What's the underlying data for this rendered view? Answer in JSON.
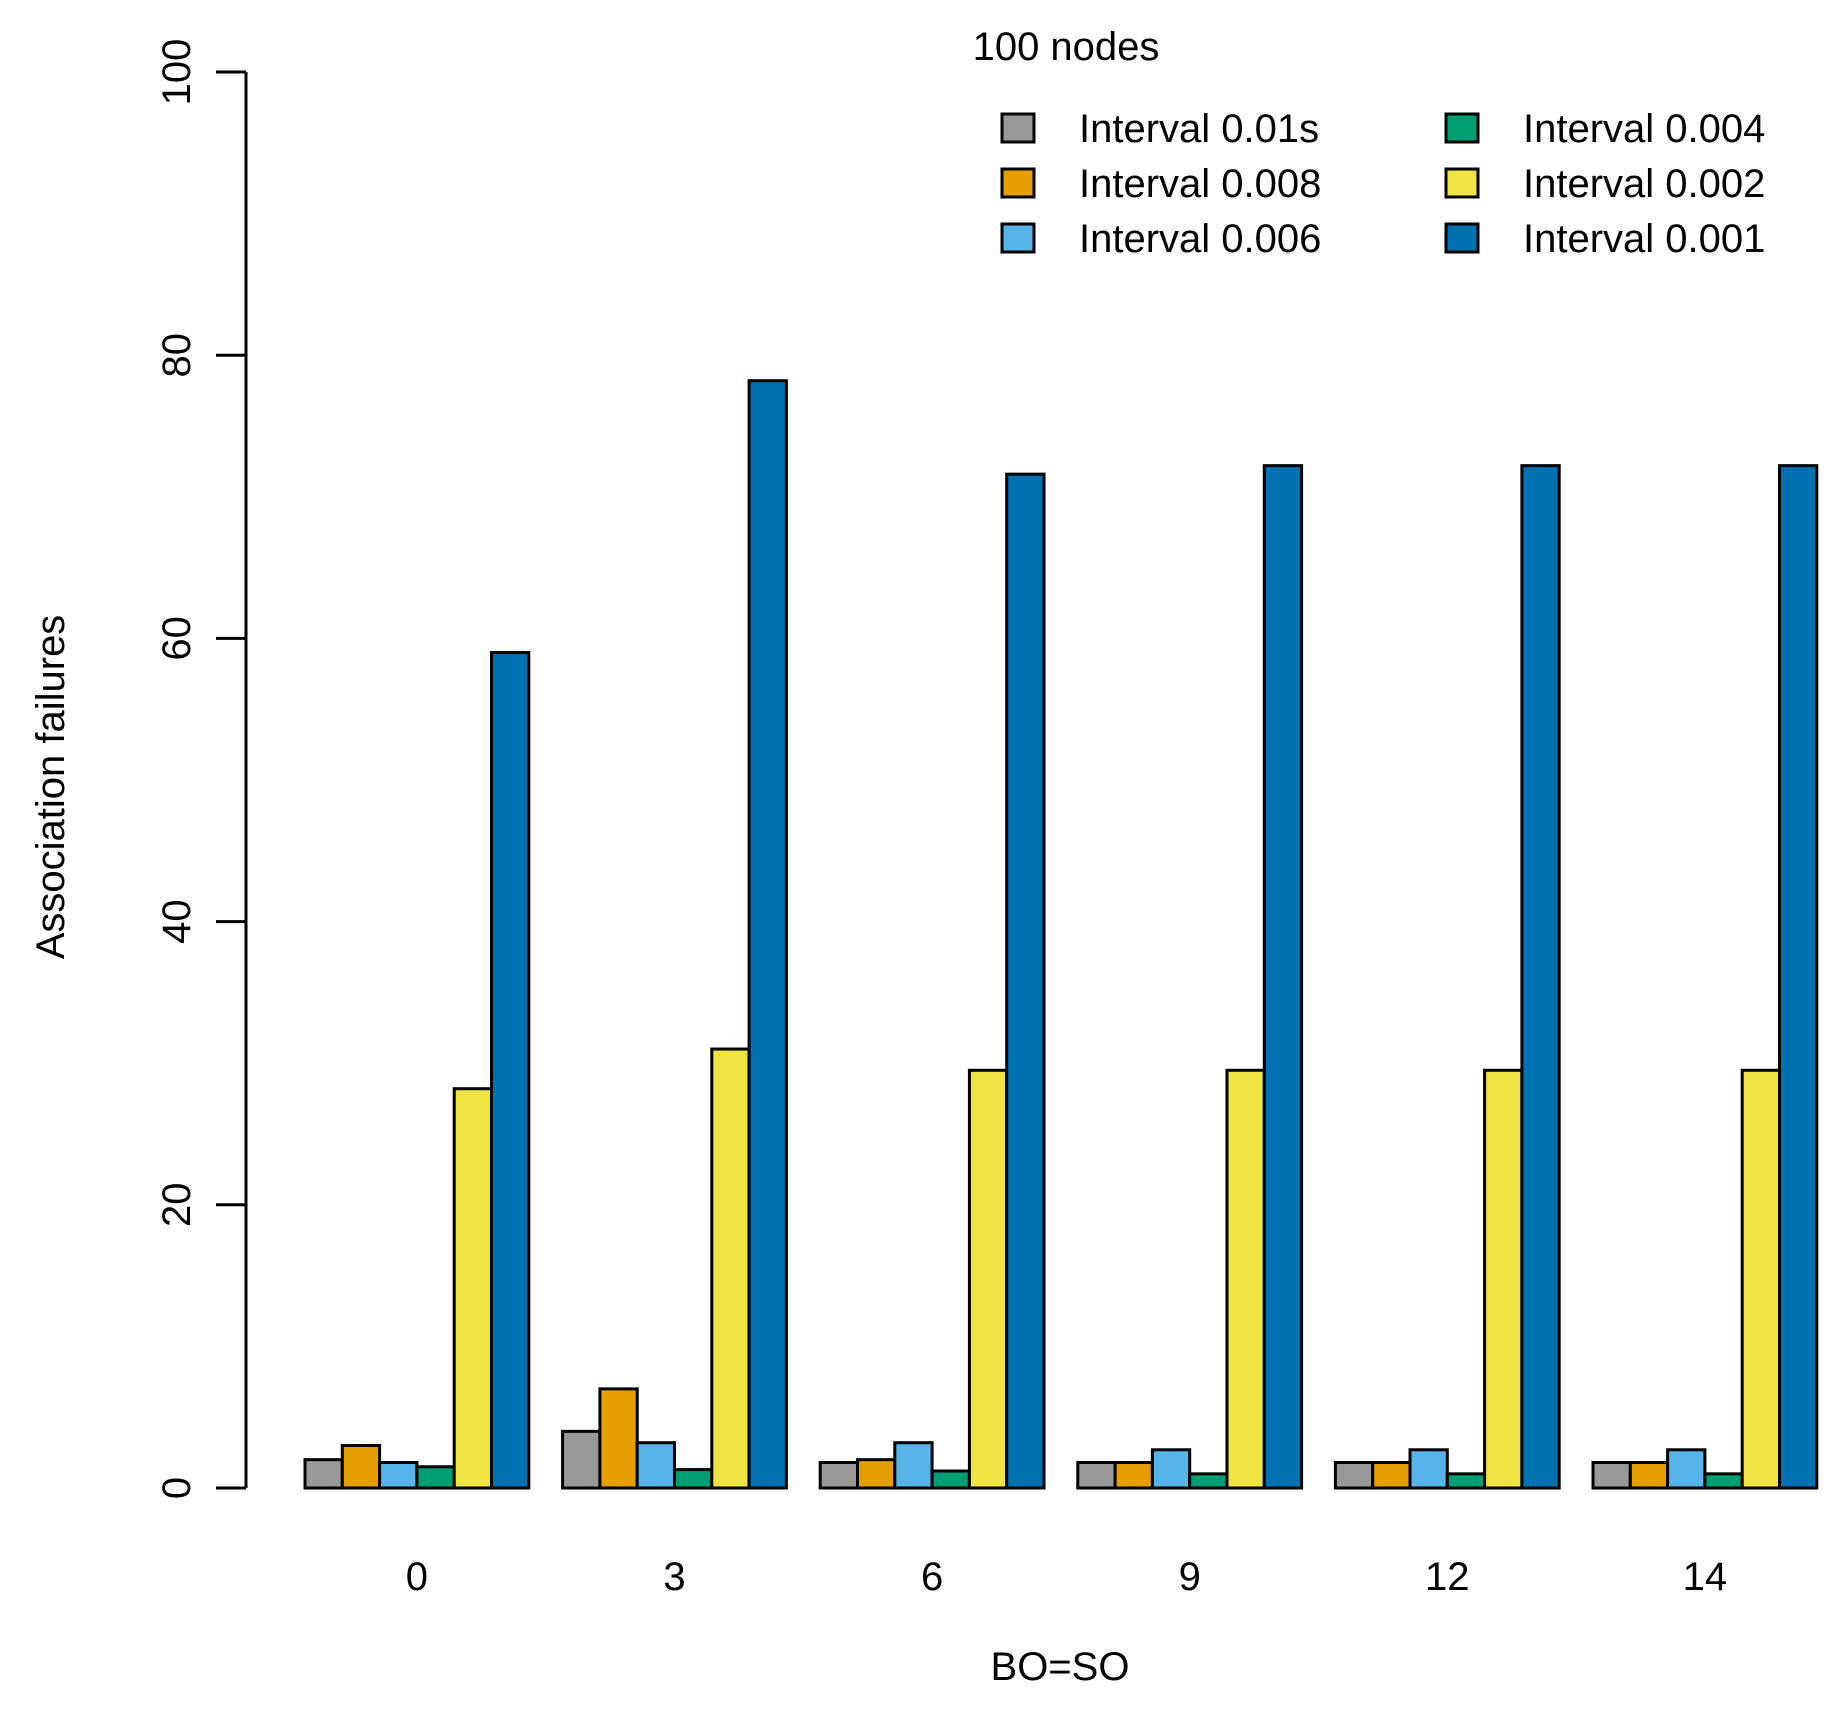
{
  "chart_data": {
    "type": "bar",
    "title": "100 nodes",
    "xlabel": "BO=SO",
    "ylabel": "Association failures",
    "categories": [
      "0",
      "3",
      "6",
      "9",
      "12",
      "14"
    ],
    "yticks": [
      "0",
      "20",
      "40",
      "60",
      "80",
      "100"
    ],
    "ylim": [
      0,
      100
    ],
    "legend_position": "top-right",
    "series": [
      {
        "name": "Interval 0.01s",
        "color": "#999999",
        "values": [
          2,
          4,
          1.8,
          1.8,
          1.8,
          1.8
        ]
      },
      {
        "name": "Interval 0.008",
        "color": "#e69f00",
        "values": [
          3,
          7,
          2,
          1.8,
          1.8,
          1.8
        ]
      },
      {
        "name": "Interval 0.006",
        "color": "#56b4e9",
        "values": [
          1.8,
          3.2,
          3.2,
          2.7,
          2.7,
          2.7
        ]
      },
      {
        "name": "Interval 0.004",
        "color": "#009e73",
        "values": [
          1.5,
          1.3,
          1.2,
          1,
          1,
          1
        ]
      },
      {
        "name": "Interval 0.002",
        "color": "#f0e442",
        "values": [
          28.2,
          31,
          29.5,
          29.5,
          29.5,
          29.5
        ]
      },
      {
        "name": "Interval 0.001",
        "color": "#0072b2",
        "values": [
          59,
          78.2,
          71.6,
          72.2,
          72.2,
          72.2
        ]
      }
    ]
  }
}
